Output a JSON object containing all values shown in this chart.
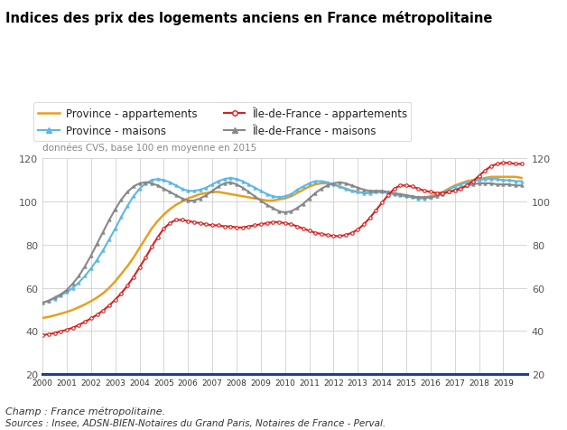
{
  "title": "Indices des prix des logements anciens en France métropolitaine",
  "subtitle": "données CVS, base 100 en moyenne en 2015",
  "footer_line1": "Champ : France métropolitaine.",
  "footer_line2": "Sources : Insee, ADSN-BIEN-Notaires du Grand Paris, Notaires de France - Perval.",
  "ylim": [
    20,
    120
  ],
  "bg_color": "#f5f5f5",
  "plot_bg": "#ffffff",
  "series": {
    "province_appt": {
      "label": "Province - appartements",
      "color": "#E8A020",
      "linewidth": 1.8,
      "marker": null,
      "values": [
        46.0,
        46.5,
        47.2,
        48.0,
        48.8,
        49.8,
        51.0,
        52.3,
        53.8,
        55.5,
        57.5,
        60.0,
        63.0,
        66.5,
        70.0,
        74.0,
        78.5,
        83.0,
        87.5,
        91.0,
        94.0,
        96.5,
        98.5,
        100.0,
        101.5,
        102.5,
        103.5,
        104.0,
        104.5,
        104.5,
        104.0,
        103.5,
        103.0,
        102.5,
        102.0,
        101.5,
        101.0,
        100.5,
        100.5,
        101.0,
        101.5,
        102.5,
        104.0,
        105.5,
        107.0,
        108.0,
        108.5,
        108.5,
        108.0,
        107.0,
        106.0,
        105.0,
        104.5,
        104.0,
        104.0,
        104.5,
        104.5,
        104.0,
        103.5,
        103.0,
        102.5,
        102.0,
        102.0,
        102.0,
        102.5,
        103.5,
        104.5,
        106.0,
        107.5,
        108.5,
        109.5,
        110.0,
        110.5,
        111.0,
        111.5,
        111.5,
        111.5,
        111.5,
        111.5,
        111.0
      ]
    },
    "province_maison": {
      "label": "Province - maisons",
      "color": "#5BB8E8",
      "linewidth": 1.5,
      "marker": "^",
      "markersize": 2.5,
      "values": [
        53.0,
        54.0,
        55.0,
        56.5,
        58.0,
        60.0,
        62.5,
        65.5,
        69.0,
        73.0,
        77.5,
        82.5,
        87.5,
        93.0,
        98.0,
        102.5,
        106.0,
        108.5,
        110.0,
        110.5,
        110.0,
        109.0,
        107.5,
        106.0,
        105.0,
        105.0,
        105.5,
        106.5,
        108.0,
        109.5,
        110.5,
        111.0,
        110.5,
        109.5,
        108.0,
        106.5,
        105.0,
        103.5,
        102.5,
        102.0,
        102.5,
        103.5,
        105.5,
        107.0,
        108.5,
        109.5,
        109.5,
        109.0,
        108.0,
        107.0,
        106.0,
        105.0,
        104.5,
        104.0,
        104.0,
        104.5,
        104.5,
        104.0,
        103.5,
        103.0,
        102.5,
        102.0,
        101.5,
        101.5,
        102.0,
        103.0,
        104.0,
        105.5,
        107.0,
        108.0,
        109.0,
        109.5,
        110.0,
        110.5,
        110.5,
        110.5,
        110.0,
        110.0,
        109.5,
        109.5
      ]
    },
    "idf_appt": {
      "label": "Île-de-France - appartements",
      "color": "#D82020",
      "linewidth": 1.5,
      "marker": "o",
      "markersize": 2.5,
      "open_marker": true,
      "values": [
        38.0,
        38.5,
        39.0,
        39.8,
        40.5,
        41.5,
        42.8,
        44.2,
        45.8,
        47.5,
        49.5,
        51.8,
        54.5,
        57.5,
        61.0,
        65.0,
        69.5,
        74.0,
        79.0,
        83.5,
        87.5,
        90.0,
        91.5,
        91.5,
        91.0,
        90.5,
        90.0,
        89.5,
        89.0,
        89.0,
        88.5,
        88.5,
        88.0,
        88.0,
        88.5,
        89.0,
        89.5,
        90.0,
        90.5,
        90.5,
        90.0,
        89.5,
        88.5,
        87.5,
        86.5,
        85.5,
        85.0,
        84.5,
        84.0,
        84.0,
        84.5,
        85.5,
        87.0,
        89.5,
        92.5,
        96.0,
        99.5,
        103.0,
        106.0,
        107.5,
        107.5,
        107.0,
        106.0,
        105.0,
        104.5,
        104.0,
        104.0,
        104.5,
        105.0,
        106.0,
        107.5,
        109.5,
        112.0,
        114.5,
        116.5,
        117.5,
        118.0,
        118.0,
        117.5,
        117.5
      ]
    },
    "idf_maison": {
      "label": "Île-de-France - maisons",
      "color": "#888888",
      "linewidth": 1.5,
      "marker": "^",
      "markersize": 2.5,
      "values": [
        53.0,
        54.0,
        55.5,
        57.0,
        59.0,
        62.0,
        65.5,
        70.0,
        75.0,
        80.5,
        86.0,
        91.5,
        96.5,
        101.0,
        104.5,
        107.0,
        108.5,
        109.0,
        108.5,
        107.5,
        106.0,
        104.5,
        103.0,
        101.5,
        100.5,
        100.5,
        101.5,
        103.0,
        105.0,
        107.0,
        108.5,
        109.0,
        108.0,
        106.5,
        104.5,
        102.5,
        100.5,
        98.5,
        97.0,
        95.5,
        95.0,
        95.5,
        97.0,
        99.0,
        101.5,
        104.0,
        106.0,
        107.5,
        108.5,
        109.0,
        108.5,
        107.5,
        106.5,
        105.5,
        105.0,
        105.0,
        105.0,
        104.5,
        104.0,
        103.5,
        103.0,
        102.5,
        102.0,
        102.0,
        102.0,
        102.5,
        103.5,
        104.5,
        105.5,
        106.5,
        107.5,
        108.0,
        108.5,
        108.5,
        108.5,
        108.0,
        108.0,
        108.0,
        107.5,
        107.5
      ]
    }
  }
}
